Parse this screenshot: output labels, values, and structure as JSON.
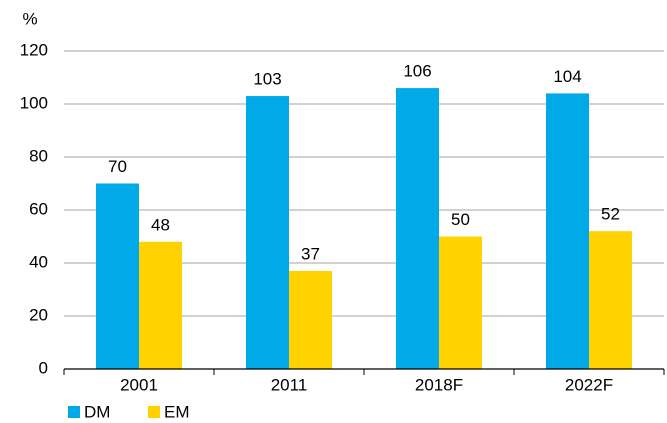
{
  "chart_data": {
    "type": "bar",
    "y_label": "%",
    "categories": [
      "2001",
      "2011",
      "2018F",
      "2022F"
    ],
    "series": [
      {
        "name": "DM",
        "color": "#00a9e8",
        "values": [
          70,
          103,
          106,
          104
        ]
      },
      {
        "name": "EM",
        "color": "#ffd200",
        "values": [
          48,
          37,
          50,
          52
        ]
      }
    ],
    "ylim": [
      0,
      120
    ],
    "yticks": [
      0,
      20,
      40,
      60,
      80,
      100,
      120
    ],
    "grid": true,
    "legend": "bottom-left"
  }
}
